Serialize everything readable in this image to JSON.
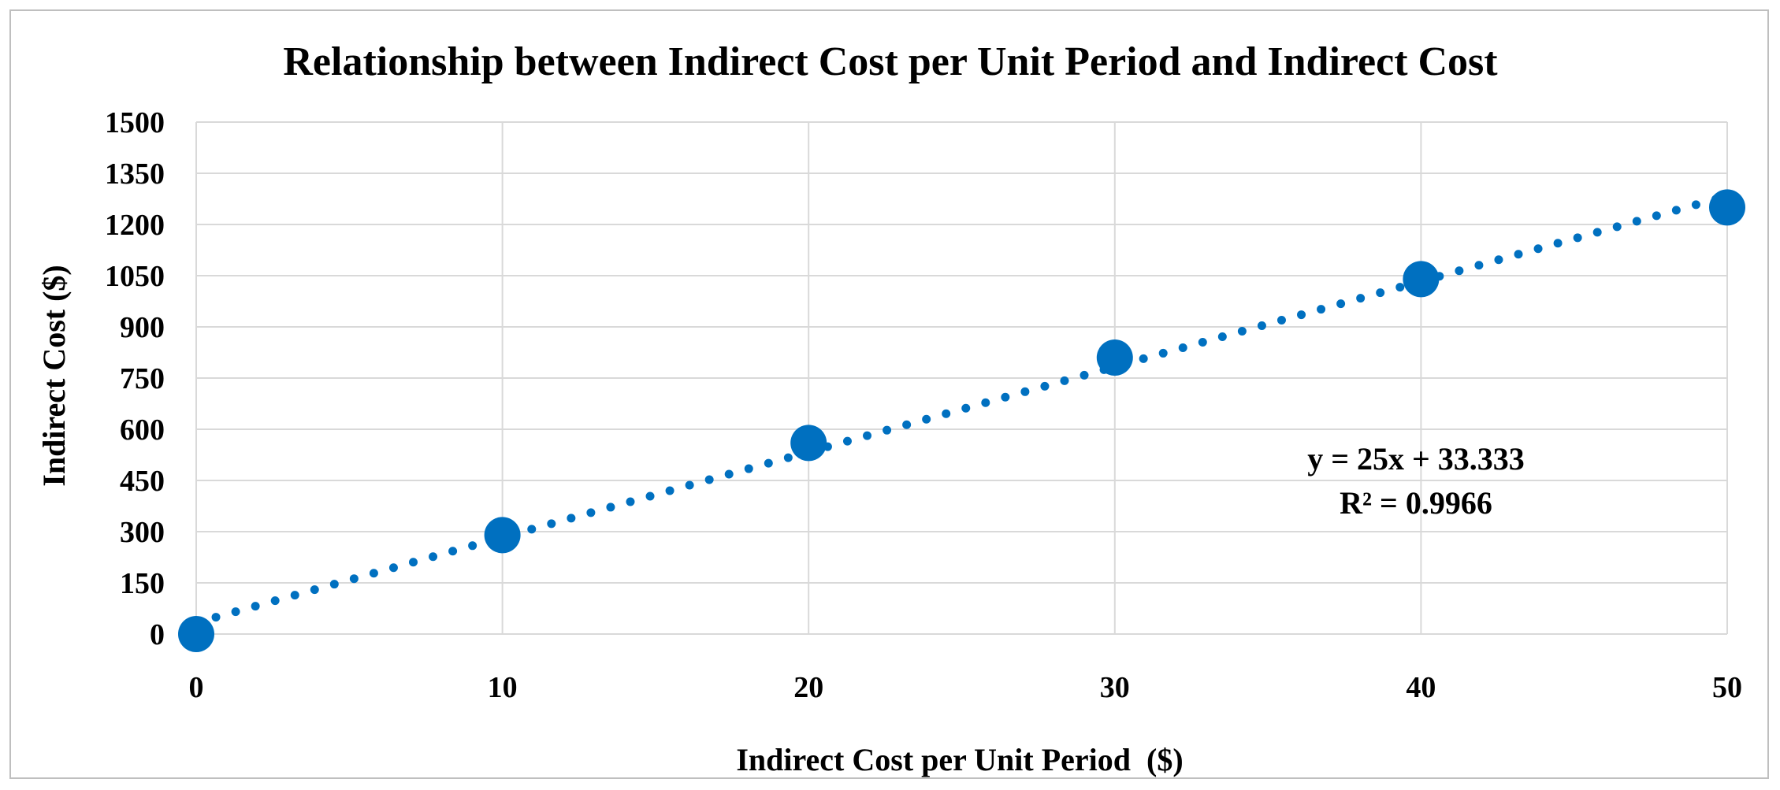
{
  "chart_data": {
    "type": "scatter",
    "title": "Relationship between Indirect Cost per Unit Period and Indirect Cost",
    "xlabel": "Indirect Cost per Unit Period  ($)",
    "ylabel": "Indirect Cost ($)",
    "xlim": [
      0,
      50
    ],
    "ylim": [
      0,
      1500
    ],
    "x_ticks": [
      0,
      10,
      20,
      30,
      40,
      50
    ],
    "y_ticks": [
      0,
      150,
      300,
      450,
      600,
      750,
      900,
      1050,
      1200,
      1350,
      1500
    ],
    "grid": true,
    "series": [
      {
        "x": [
          0,
          10,
          20,
          30,
          40,
          50
        ],
        "y": [
          0,
          290,
          560,
          810,
          1040,
          1250
        ],
        "color": "#0070C0"
      }
    ],
    "trendline": {
      "type": "linear",
      "slope": 25,
      "intercept": 33.333,
      "style": "dotted",
      "color": "#0070C0"
    },
    "annotations": {
      "equation": "y = 25x + 33.333",
      "r_squared": "R² = 0.9966"
    },
    "colors": {
      "series": "#0070C0",
      "grid": "#d9d9d9",
      "frame": "#bfbfbf"
    }
  }
}
